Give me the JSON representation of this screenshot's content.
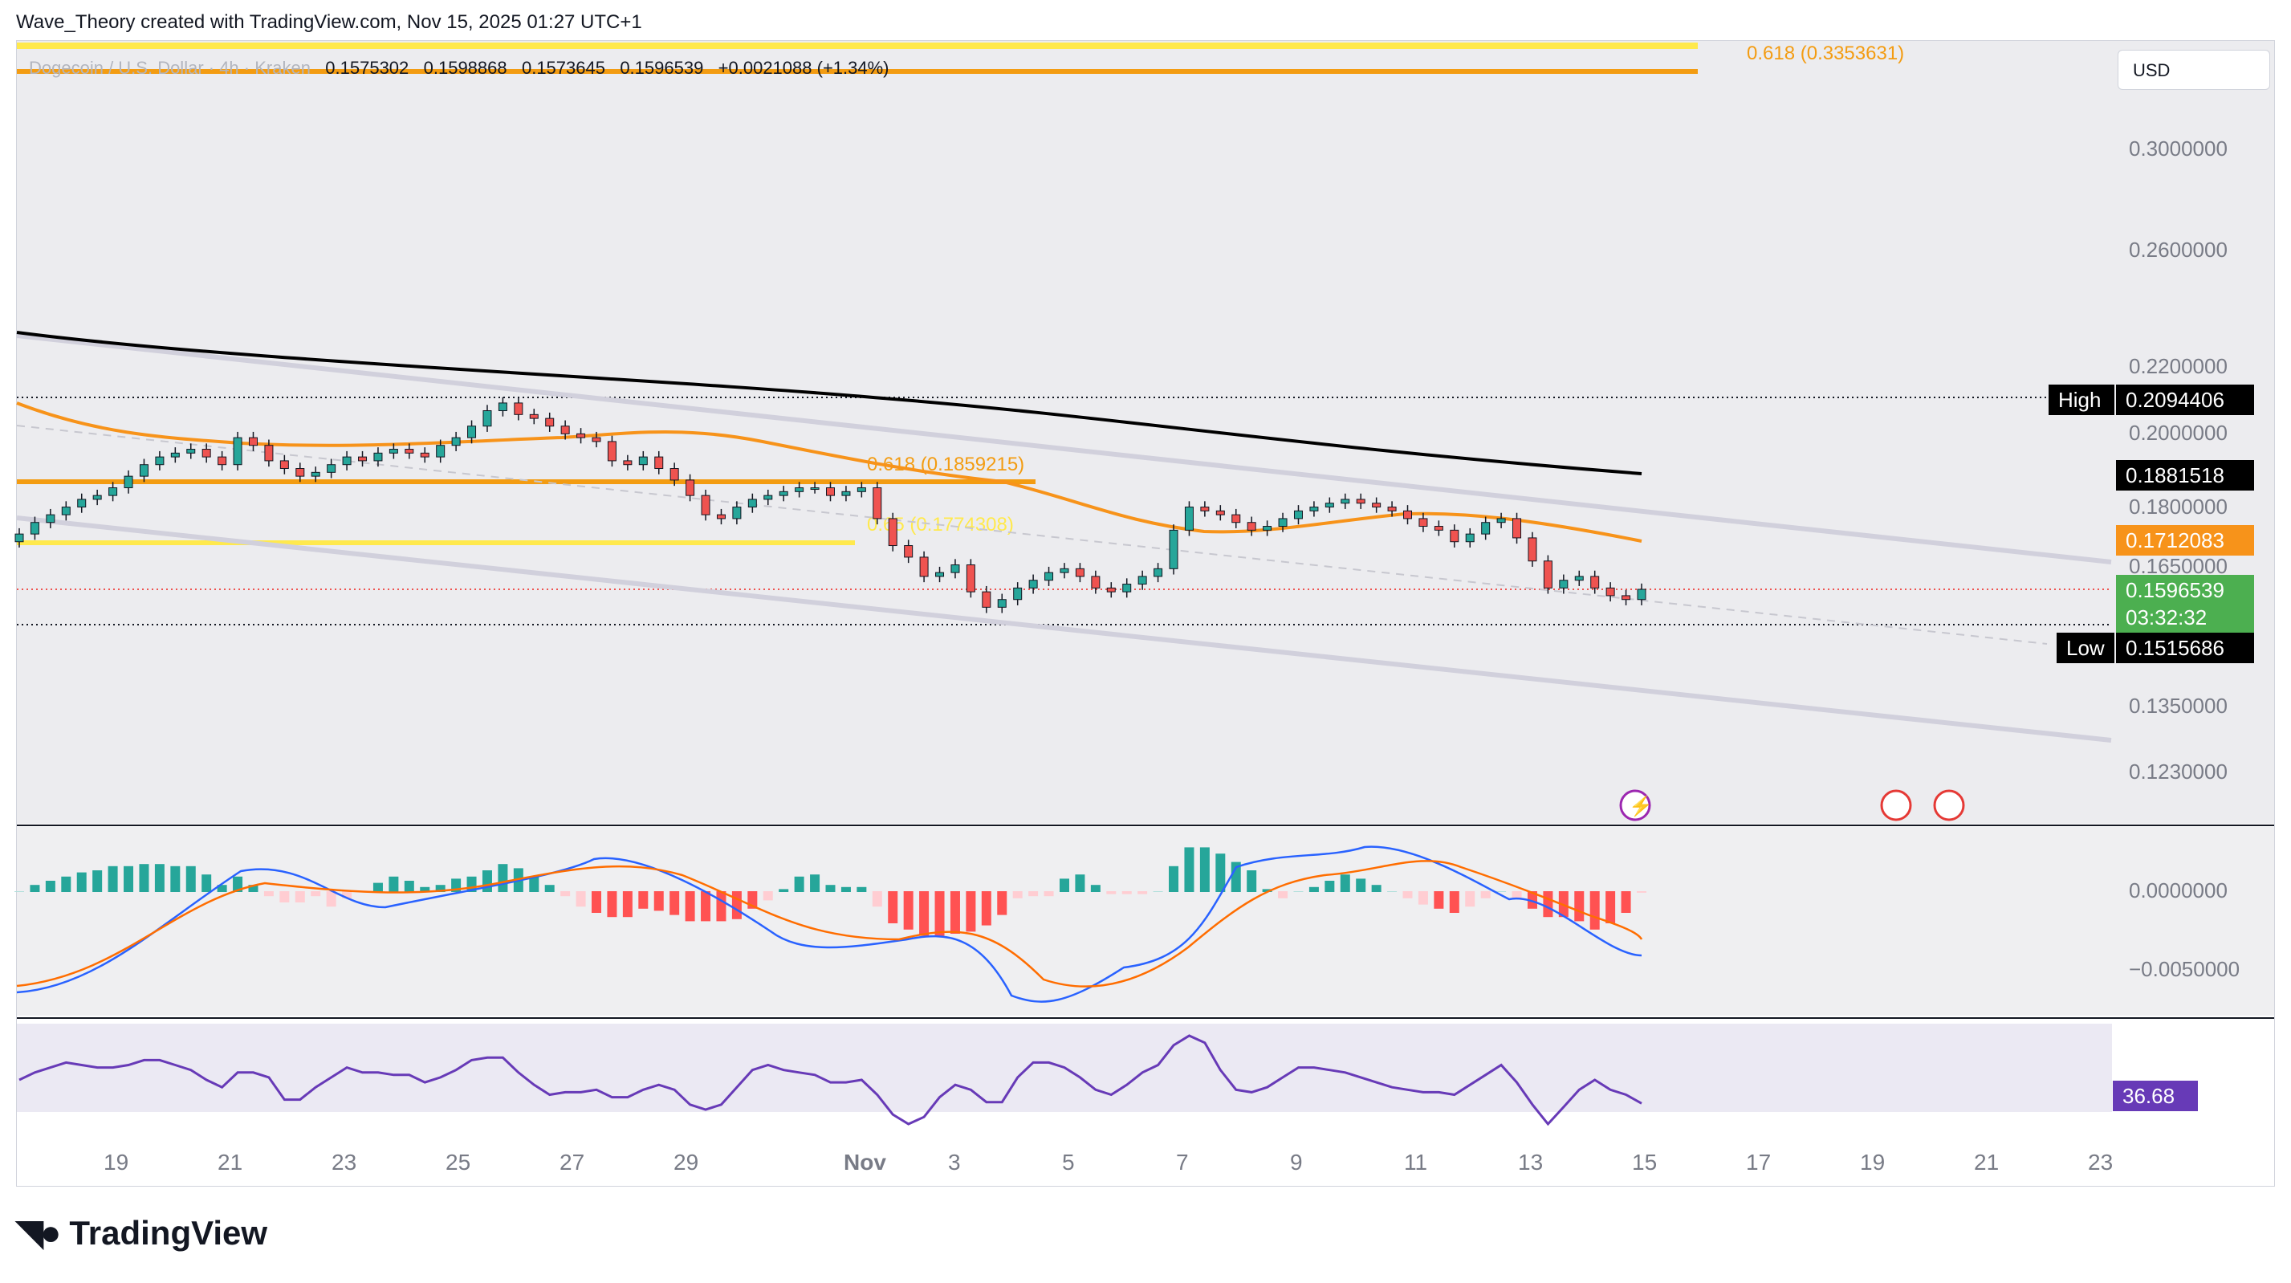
{
  "header": {
    "attribution": "Wave_Theory created with TradingView.com, Nov 15, 2025 01:27 UTC+1"
  },
  "legend": {
    "symbol": "Dogecoin / U.S. Dollar · 4h · Kraken",
    "open": "0.1575302",
    "high": "0.1598868",
    "low": "0.1573645",
    "close": "0.1596539",
    "change": "+0.0021088 (+1.34%)"
  },
  "currency_button": "USD",
  "price_axis": [
    "0.3000000",
    "0.2600000",
    "0.2200000",
    "0.2000000",
    "0.1800000",
    "0.1650000",
    "0.1350000",
    "0.1230000"
  ],
  "tags": {
    "high_label": "High",
    "high_value": "0.2094406",
    "ma_black": "0.1881518",
    "ma_orange": "0.1712083",
    "last_price": "0.1596539",
    "countdown": "03:32:32",
    "low_label": "Low",
    "low_value": "0.1515686"
  },
  "fib_labels": {
    "top": "0.618 (0.3353631)",
    "mid": "0.618 (0.1859215)",
    "low": "0.65 (0.1774308)"
  },
  "macd_axis": [
    "0.0000000",
    "−0.0050000"
  ],
  "rsi_value": "36.68",
  "x_axis": [
    "19",
    "21",
    "23",
    "25",
    "27",
    "29",
    "Nov",
    "3",
    "5",
    "7",
    "9",
    "11",
    "13",
    "15",
    "17",
    "19",
    "21",
    "23"
  ],
  "footer": {
    "brand": "TradingView"
  },
  "colors": {
    "up": "#26a69a",
    "down": "#ef5350",
    "ema_orange": "#f7931a",
    "ema_black": "#000000",
    "fib_yellow": "#ffe94d",
    "fib_orange": "#f39c12",
    "channel": "#d1d0dc",
    "rsi": "#673ab7",
    "last_price_bg": "#4caf50",
    "macd_line": "#2962ff",
    "signal_line": "#ff6d00"
  },
  "chart_data": {
    "type": "candlestick",
    "title": "Dogecoin / U.S. Dollar · 4h · Kraken",
    "ylim": [
      0.115,
      0.345
    ],
    "x_range": [
      "Oct 18",
      "Nov 24"
    ],
    "close_series": [
      0.174,
      0.177,
      0.179,
      0.181,
      0.183,
      0.184,
      0.186,
      0.189,
      0.192,
      0.194,
      0.195,
      0.196,
      0.194,
      0.192,
      0.199,
      0.197,
      0.193,
      0.191,
      0.189,
      0.19,
      0.192,
      0.194,
      0.193,
      0.195,
      0.196,
      0.195,
      0.194,
      0.197,
      0.199,
      0.202,
      0.206,
      0.208,
      0.205,
      0.204,
      0.202,
      0.2,
      0.199,
      0.198,
      0.193,
      0.192,
      0.194,
      0.191,
      0.188,
      0.184,
      0.179,
      0.178,
      0.181,
      0.183,
      0.184,
      0.185,
      0.186,
      0.186,
      0.184,
      0.185,
      0.186,
      0.178,
      0.171,
      0.168,
      0.163,
      0.164,
      0.166,
      0.159,
      0.155,
      0.157,
      0.16,
      0.162,
      0.164,
      0.165,
      0.163,
      0.16,
      0.159,
      0.161,
      0.163,
      0.165,
      0.175,
      0.181,
      0.18,
      0.179,
      0.177,
      0.175,
      0.176,
      0.178,
      0.18,
      0.181,
      0.182,
      0.183,
      0.182,
      0.181,
      0.18,
      0.178,
      0.176,
      0.175,
      0.172,
      0.174,
      0.177,
      0.178,
      0.173,
      0.167,
      0.16,
      0.162,
      0.163,
      0.16,
      0.158,
      0.157,
      0.1596539
    ],
    "macd": {
      "zero": 0.0,
      "min_label": -0.005
    },
    "rsi_last": 36.68,
    "annotations": {
      "high": 0.2094406,
      "low": 0.1515686,
      "ma_black": 0.1881518,
      "ma_orange": 0.1712083,
      "last": 0.1596539
    }
  }
}
